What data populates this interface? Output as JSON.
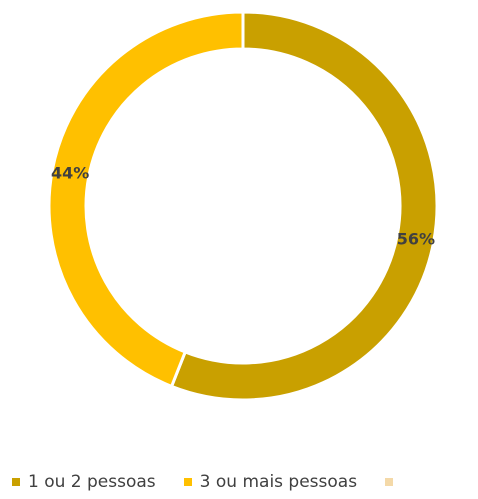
{
  "chart_data": {
    "type": "pie",
    "variant": "doughnut",
    "categories": [
      "1 ou 2 pessoas",
      "3 ou mais pessoas",
      ""
    ],
    "values": [
      56,
      44,
      0
    ],
    "labels": [
      "56%",
      "44%",
      ""
    ],
    "colors": [
      "#C9A000",
      "#FFC000",
      "#F4D9A8"
    ],
    "title": "",
    "legend_position": "bottom"
  }
}
